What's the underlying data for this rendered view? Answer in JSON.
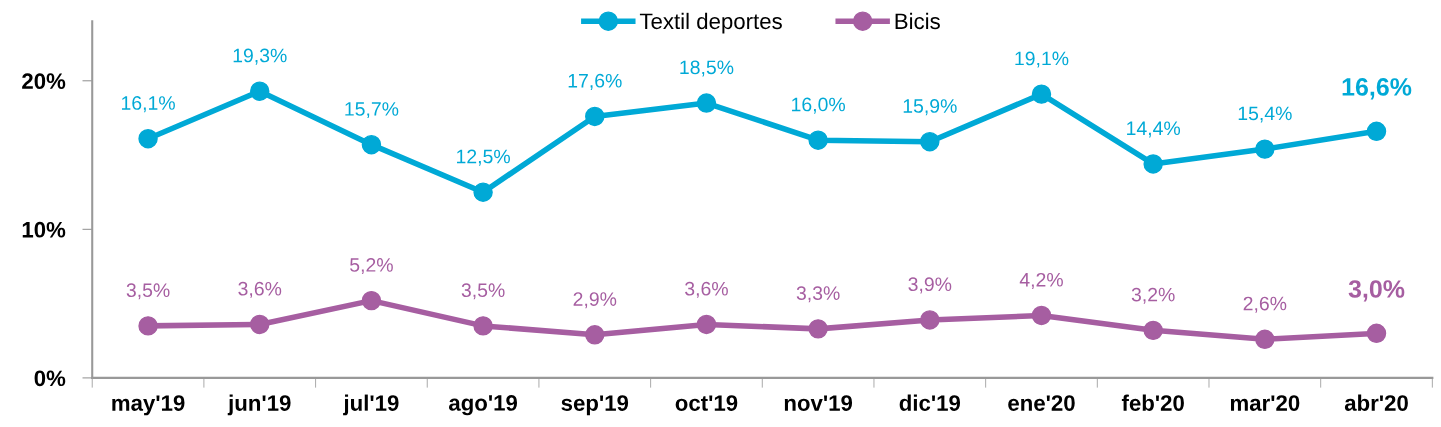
{
  "chart_data": {
    "type": "line",
    "categories": [
      "may'19",
      "jun'19",
      "jul'19",
      "ago'19",
      "sep'19",
      "oct'19",
      "nov'19",
      "dic'19",
      "ene'20",
      "feb'20",
      "mar'20",
      "abr'20"
    ],
    "series": [
      {
        "name": "Textil deportes",
        "color": "#00a9d6",
        "values": [
          16.1,
          19.3,
          15.7,
          12.5,
          17.6,
          18.5,
          16.0,
          15.9,
          19.1,
          14.4,
          15.4,
          16.6
        ],
        "value_labels": [
          "16,1%",
          "19,3%",
          "15,7%",
          "12,5%",
          "17,6%",
          "18,5%",
          "16,0%",
          "15,9%",
          "19,1%",
          "14,4%",
          "15,4%",
          "16,6%"
        ]
      },
      {
        "name": "Bicis",
        "color": "#a65ea1",
        "values": [
          3.5,
          3.6,
          5.2,
          3.5,
          2.9,
          3.6,
          3.3,
          3.9,
          4.2,
          3.2,
          2.6,
          3.0
        ],
        "value_labels": [
          "3,5%",
          "3,6%",
          "5,2%",
          "3,5%",
          "2,9%",
          "3,6%",
          "3,3%",
          "3,9%",
          "4,2%",
          "3,2%",
          "2,6%",
          "3,0%"
        ]
      }
    ],
    "ylim": [
      0,
      24
    ],
    "yticks": [
      {
        "value": 0,
        "label": "0%"
      },
      {
        "value": 10,
        "label": "10%"
      },
      {
        "value": 20,
        "label": "20%"
      }
    ],
    "grid": false,
    "legend": "top",
    "marker": "circle",
    "line_style": "solid"
  }
}
